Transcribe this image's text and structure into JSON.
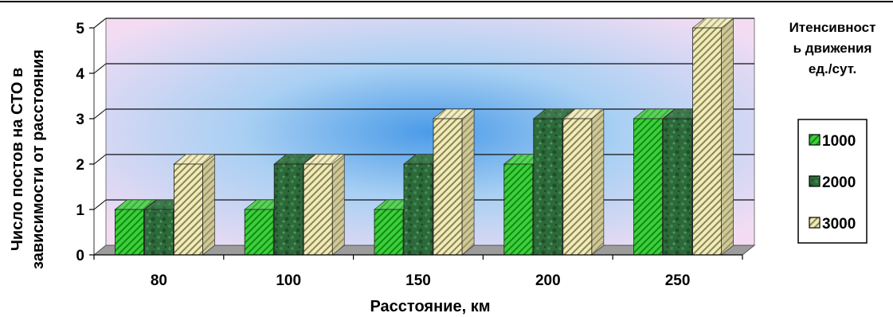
{
  "chart_data": {
    "type": "bar",
    "categories": [
      "80",
      "100",
      "150",
      "200",
      "250"
    ],
    "series": [
      {
        "name": "1000",
        "values": [
          1,
          1,
          1,
          2,
          3
        ],
        "color": "#2fbf2f",
        "pattern": "diagonal-hatch"
      },
      {
        "name": "2000",
        "values": [
          1,
          2,
          2,
          3,
          3
        ],
        "color": "#2f6b3a",
        "pattern": "marble"
      },
      {
        "name": "3000",
        "values": [
          2,
          2,
          3,
          3,
          5
        ],
        "color": "#e8e2a8",
        "pattern": "diagonal-hatch"
      }
    ],
    "xlabel": "Расстояние, км",
    "ylabel_line1": "Число постов на СТО в",
    "ylabel_line2": "зависимости от расстояния",
    "ylim": [
      0,
      5
    ],
    "yticks": [
      "0",
      "1",
      "2",
      "3",
      "4",
      "5"
    ],
    "legend": {
      "title_lines": [
        "Итенсивност",
        "ь движения",
        "ед./сут."
      ],
      "placement": "right"
    },
    "grid": true,
    "style": "3d-column",
    "plot_background": "radial gradient blue center to lavender edges"
  }
}
